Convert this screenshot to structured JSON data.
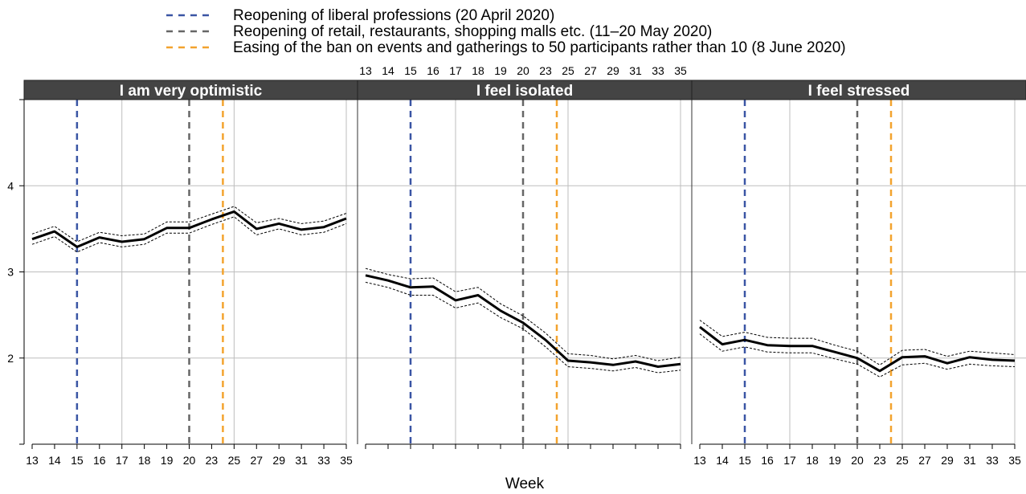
{
  "chart_data": {
    "type": "line",
    "xlabel": "Week",
    "ylabel": "",
    "ylim": [
      1,
      5
    ],
    "y_ticks": [
      4,
      3,
      2
    ],
    "x_ticks": [
      "13",
      "14",
      "15",
      "16",
      "17",
      "18",
      "19",
      "20",
      "23",
      "25",
      "27",
      "29",
      "31",
      "33",
      "35"
    ],
    "x_tick_positions": [
      1,
      2,
      3,
      4,
      5,
      6,
      7,
      8,
      9,
      10,
      11,
      12,
      13,
      14,
      15
    ],
    "x_range": [
      0.8,
      15.2
    ],
    "vertical_gridlines_at": [
      5,
      10,
      15
    ],
    "grid": true,
    "legend": {
      "placement": "top",
      "entries": [
        {
          "label": "Reopening of liberal professions (20 April 2020)",
          "color": "#3a55a4",
          "style": "dashed",
          "x": 3
        },
        {
          "label": "Reopening of retail, restaurants, shopping malls etc. (11–20 May 2020)",
          "color": "#666666",
          "style": "dashed",
          "x": 8
        },
        {
          "label": "Easing of the ban on events and gatherings to 50 participants rather than 10 (8 June 2020)",
          "color": "#f3a32e",
          "style": "dashed",
          "x": 9.5
        }
      ]
    },
    "panels": [
      {
        "title": "I am very optimistic",
        "x": [
          1,
          2,
          3,
          4,
          5,
          6,
          7,
          8,
          9,
          10,
          11,
          12,
          13,
          14,
          15
        ],
        "mean": [
          3.38,
          3.47,
          3.29,
          3.4,
          3.35,
          3.38,
          3.51,
          3.51,
          3.61,
          3.7,
          3.5,
          3.56,
          3.49,
          3.52,
          3.62
        ],
        "upper": [
          3.44,
          3.53,
          3.35,
          3.46,
          3.42,
          3.44,
          3.58,
          3.58,
          3.67,
          3.76,
          3.57,
          3.62,
          3.56,
          3.59,
          3.68
        ],
        "lower": [
          3.32,
          3.41,
          3.23,
          3.34,
          3.29,
          3.32,
          3.45,
          3.45,
          3.55,
          3.64,
          3.43,
          3.5,
          3.43,
          3.46,
          3.56
        ]
      },
      {
        "title": "I feel isolated",
        "x": [
          1,
          2,
          3,
          4,
          5,
          6,
          7,
          8,
          9,
          10,
          11,
          12,
          13,
          14,
          15
        ],
        "mean": [
          2.96,
          2.9,
          2.82,
          2.83,
          2.67,
          2.73,
          2.55,
          2.41,
          2.21,
          1.97,
          1.95,
          1.92,
          1.96,
          1.9,
          1.93
        ],
        "upper": [
          3.04,
          2.97,
          2.92,
          2.93,
          2.77,
          2.82,
          2.63,
          2.49,
          2.29,
          2.05,
          2.03,
          1.99,
          2.03,
          1.97,
          2.01
        ],
        "lower": [
          2.88,
          2.82,
          2.73,
          2.73,
          2.58,
          2.64,
          2.47,
          2.34,
          2.13,
          1.9,
          1.88,
          1.85,
          1.89,
          1.83,
          1.86
        ]
      },
      {
        "title": "I feel stressed",
        "x": [
          1,
          2,
          3,
          4,
          5,
          6,
          7,
          8,
          9,
          10,
          11,
          12,
          13,
          14,
          15
        ],
        "mean": [
          2.36,
          2.16,
          2.21,
          2.15,
          2.14,
          2.14,
          2.07,
          2.0,
          1.85,
          2.01,
          2.02,
          1.94,
          2.01,
          1.98,
          1.97
        ],
        "upper": [
          2.44,
          2.25,
          2.3,
          2.24,
          2.23,
          2.23,
          2.15,
          2.08,
          1.92,
          2.09,
          2.1,
          2.02,
          2.08,
          2.06,
          2.04
        ],
        "lower": [
          2.28,
          2.08,
          2.13,
          2.07,
          2.06,
          2.06,
          1.99,
          1.93,
          1.78,
          1.92,
          1.94,
          1.87,
          1.93,
          1.91,
          1.9
        ]
      }
    ]
  }
}
